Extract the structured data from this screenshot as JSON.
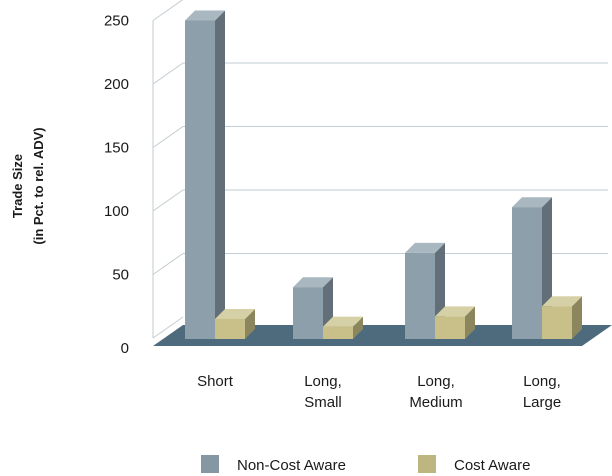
{
  "chart_data": {
    "type": "bar",
    "categories": [
      [
        "Short"
      ],
      [
        "Long,",
        "Small"
      ],
      [
        "Long,",
        "Medium"
      ],
      [
        "Long,",
        "Large"
      ]
    ],
    "series": [
      {
        "name": "Non-Cost Aware",
        "values": [
          250,
          40,
          67,
          103
        ],
        "color": "#8c9fab"
      },
      {
        "name": "Cost Aware",
        "values": [
          15,
          9,
          17,
          25
        ],
        "color": "#c8c088"
      }
    ],
    "ylabel": [
      "Trade Size",
      "(in Pct. to rel. ADV)"
    ],
    "yticks": [
      0,
      50,
      100,
      150,
      200,
      250
    ],
    "ylim": [
      0,
      250
    ],
    "grid": true,
    "legend_position": "bottom",
    "floor_color": "#4e6b7d",
    "grid_color": "#c2ccd2"
  }
}
